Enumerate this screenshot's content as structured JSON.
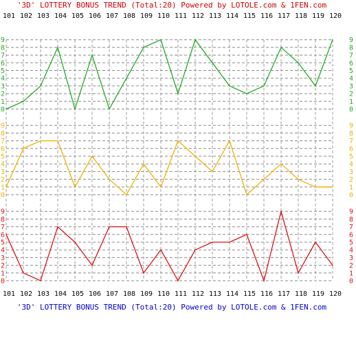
{
  "chart_data": {
    "type": "line",
    "title_top": "'3D' LOTTERY BONUS TREND (Total:20)  Powered by LOTOLE.com & 1FEN.com",
    "title_bottom": "'3D' LOTTERY BONUS TREND (Total:20)  Powered by LOTOLE.com & 1FEN.com",
    "categories": [
      "101",
      "102",
      "103",
      "104",
      "105",
      "106",
      "107",
      "108",
      "109",
      "110",
      "111",
      "112",
      "113",
      "114",
      "115",
      "116",
      "117",
      "118",
      "119",
      "120"
    ],
    "digit_ticks": [
      "0",
      "1",
      "2",
      "3",
      "4",
      "5",
      "6",
      "7",
      "8",
      "9"
    ],
    "ylim": [
      0,
      9
    ],
    "grid": true,
    "series": [
      {
        "color": "#22aa22",
        "values": [
          0,
          1,
          3,
          8,
          0,
          7,
          0,
          4,
          8,
          9,
          2,
          9,
          6,
          3,
          2,
          3,
          8,
          6,
          3,
          9
        ]
      },
      {
        "color": "#f0b000",
        "values": [
          1,
          6,
          7,
          7,
          1,
          5,
          2,
          0,
          4,
          1,
          7,
          5,
          3,
          7,
          0,
          2,
          4,
          2,
          1,
          1
        ]
      },
      {
        "color": "#dd1111",
        "values": [
          6,
          1,
          0,
          7,
          5,
          2,
          7,
          7,
          1,
          4,
          0,
          4,
          5,
          5,
          6,
          0,
          9,
          1,
          5,
          2
        ]
      }
    ],
    "title_color": "#cc0000",
    "subtitle_color": "#0000cc",
    "tick_color": "#000000"
  }
}
